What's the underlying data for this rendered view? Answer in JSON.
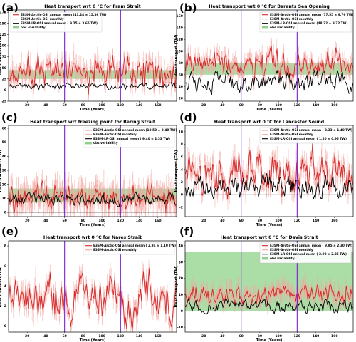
{
  "colors": {
    "annual": "#d62728",
    "monthly": "#f4a6a0",
    "lr": "#000000",
    "obs": "#8fd18a",
    "vline": "#7a1fd6"
  },
  "chart_data": [
    {
      "panel": "(a)",
      "type": "line",
      "title": "Heat transport wrt 0 °C for Fram Strait",
      "xlabel": "Time (Years)",
      "ylabel": "Heat transport (TW)",
      "xlim": [
        0,
        180
      ],
      "ylim": [
        -25,
        180
      ],
      "xticks": [
        20,
        40,
        60,
        80,
        100,
        120,
        140,
        160
      ],
      "yticks": [
        -25,
        0,
        25,
        50,
        75,
        100,
        125,
        150,
        175
      ],
      "vlines": [
        60,
        120
      ],
      "obs_band": [
        25,
        45
      ],
      "zero_line": 0,
      "legend": [
        "E3SM-Arctic-OSI annual mean (41.24 ± 15.36 TW)",
        "E3SM-Arctic-OSI monthly",
        "E3SM-LR-OSI annual mean ( 9.25 ± 3.65 TW)",
        "obs variability"
      ],
      "legend_loc": "upper-left",
      "series_stats": {
        "annual": {
          "mean": 41.24,
          "sd": 15.36
        },
        "lr": {
          "mean": 9.25,
          "sd": 3.65
        },
        "monthly_sd": 30
      }
    },
    {
      "panel": "(b)",
      "type": "line",
      "title": "Heat transport wrt 0 °C for Barents Sea Opening",
      "xlabel": "Time (Years)",
      "ylabel": "Heat transport (TW)",
      "xlim": [
        0,
        180
      ],
      "ylim": [
        15,
        170
      ],
      "xticks": [
        20,
        40,
        60,
        80,
        100,
        120,
        140,
        160
      ],
      "yticks": [
        20,
        40,
        60,
        80,
        100,
        120,
        140,
        160
      ],
      "vlines": [
        60,
        120
      ],
      "obs_band": [
        60,
        80
      ],
      "zero_line": null,
      "legend": [
        "E3SM-Arctic-OSI annual mean (77.55 ± 9.76 TW)",
        "E3SM-Arctic-OSI monthly",
        "E3SM-LR-OSI annual mean (48.32 ± 9.72 TW)",
        "obs variability"
      ],
      "legend_loc": "upper-right",
      "series_stats": {
        "annual": {
          "mean": 77.55,
          "sd": 9.76
        },
        "lr": {
          "mean": 48.32,
          "sd": 9.72
        },
        "monthly_sd": 20
      }
    },
    {
      "panel": "(c)",
      "type": "line",
      "title": "Heat transport wrt freezing point for Bering Strait",
      "xlabel": "Time (Years)",
      "ylabel": "Heat transport (TW)",
      "xlim": [
        0,
        180
      ],
      "ylim": [
        -3,
        62
      ],
      "xticks": [
        20,
        40,
        60,
        80,
        100,
        120,
        140,
        160
      ],
      "yticks": [
        0,
        10,
        20,
        30,
        40,
        50,
        60
      ],
      "vlines": [
        60,
        120
      ],
      "obs_band": [
        7,
        17
      ],
      "zero_line": 0,
      "legend": [
        "E3SM-Arctic-OSI annual mean (10.50 ± 2.40 TW)",
        "E3SM-Arctic-OSI monthly",
        "E3SM-LR-OSI annual mean ( 9.40 ± 2.33 TW)",
        "obs variability"
      ],
      "legend_loc": "upper-right",
      "series_stats": {
        "annual": {
          "mean": 10.5,
          "sd": 2.4
        },
        "lr": {
          "mean": 9.4,
          "sd": 2.33
        },
        "monthly_sd": 14
      }
    },
    {
      "panel": "(d)",
      "type": "line",
      "title": "Heat transport wrt 0 °C for Lancaster Sound",
      "xlabel": "Time (Years)",
      "ylabel": "Heat transport (TW)",
      "xlim": [
        0,
        180
      ],
      "ylim": [
        -3.5,
        11
      ],
      "xticks": [
        20,
        40,
        60,
        80,
        100,
        120,
        140,
        160
      ],
      "yticks": [
        -2,
        0,
        2,
        4,
        6,
        8,
        10
      ],
      "vlines": [
        60,
        120
      ],
      "obs_band": null,
      "zero_line": 0,
      "legend": [
        "E3SM-Arctic-OSI annual mean ( 3.33 ± 1.40 TW)",
        "E3SM-Arctic-OSI monthly",
        "E3SM-LR-OSI annual mean ( 1.20 ± 0.95 TW)"
      ],
      "legend_loc": "upper-right",
      "series_stats": {
        "annual": {
          "mean": 3.33,
          "sd": 1.4
        },
        "lr": {
          "mean": 1.2,
          "sd": 0.95
        },
        "monthly_sd": 2.4
      }
    },
    {
      "panel": "(e)",
      "type": "line",
      "title": "Heat transport wrt 0 °C for Nares Strait",
      "xlabel": "Time (Years)",
      "ylabel": "Heat transport (TW)",
      "xlim": [
        0,
        180
      ],
      "ylim": [
        -0.6,
        8.5
      ],
      "xticks": [
        20,
        40,
        60,
        80,
        100,
        120,
        140,
        160
      ],
      "yticks": [
        0,
        2,
        4,
        6,
        8
      ],
      "vlines": [
        60,
        120
      ],
      "obs_band": null,
      "zero_line": 0,
      "legend": [
        "E3SM-Arctic-OSI annual mean ( 2.94 ± 1.10 TW)",
        "E3SM-Arctic-OSI monthly"
      ],
      "legend_loc": "upper-right",
      "series_stats": {
        "annual": {
          "mean": 2.94,
          "sd": 1.1
        },
        "lr": null,
        "monthly_sd": 1.3
      }
    },
    {
      "panel": "(f)",
      "type": "line",
      "title": "Heat transport wrt 0 °C for Davis Strait",
      "xlabel": "Time (Years)",
      "ylabel": "Heat transport (TW)",
      "xlim": [
        0,
        180
      ],
      "ylim": [
        -13,
        43
      ],
      "xticks": [
        20,
        40,
        60,
        80,
        100,
        120,
        140,
        160
      ],
      "yticks": [
        -10,
        0,
        10,
        20,
        30,
        40
      ],
      "vlines": [
        60,
        120
      ],
      "obs_band": [
        0,
        36
      ],
      "zero_line": 0,
      "legend": [
        "E3SM-Arctic-OSI annual mean ( 9.95 ± 2.30 TW)",
        "E3SM-Arctic-OSI monthly",
        "E3SM-LR-OSI annual mean ( 2.99 ± 2.35 TW)",
        "obs variability"
      ],
      "legend_loc": "upper-right",
      "series_stats": {
        "annual": {
          "mean": 9.95,
          "sd": 2.3
        },
        "lr": {
          "mean": 2.99,
          "sd": 2.35
        },
        "monthly_sd": 7
      }
    }
  ]
}
